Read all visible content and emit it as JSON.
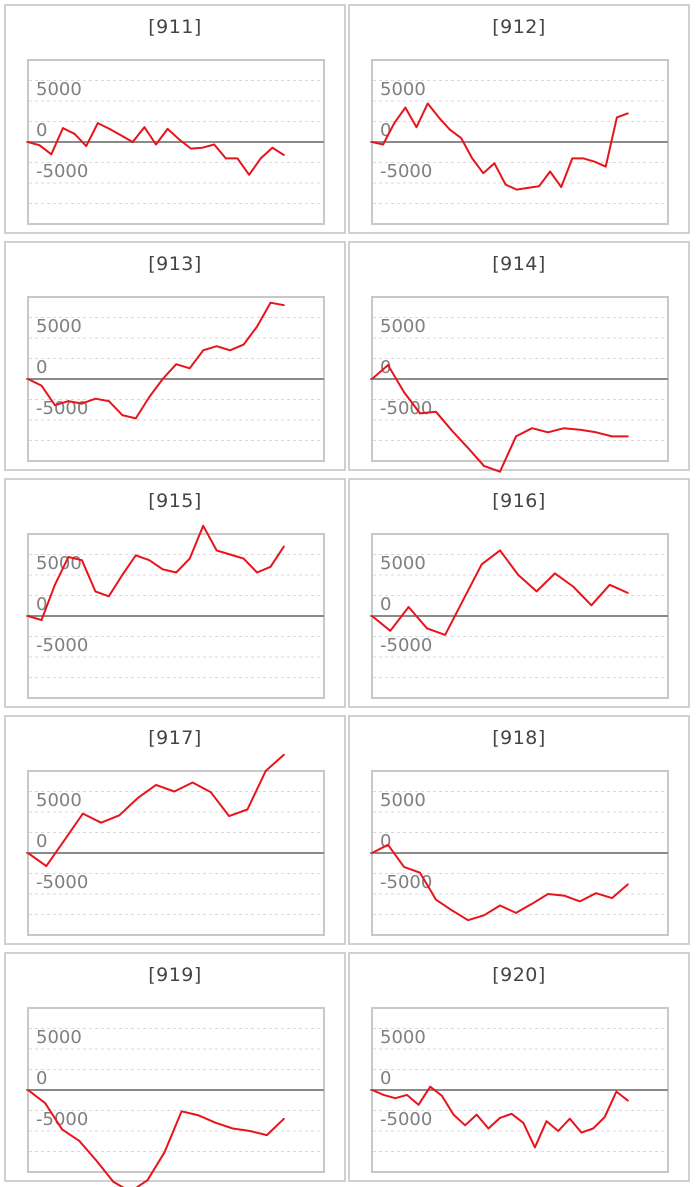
{
  "chart_data": [
    {
      "type": "line",
      "title": "[911]",
      "yticks": [
        5000,
        0,
        -5000
      ],
      "ylim": [
        -10000,
        10000
      ],
      "grid": "dashed",
      "values": [
        0,
        -400,
        -1500,
        1700,
        1000,
        -500,
        2300,
        1600,
        800,
        0,
        1800,
        -300,
        1600,
        300,
        -800,
        -700,
        -300,
        -2000,
        -2000,
        -4000,
        -2000,
        -700,
        -1600
      ]
    },
    {
      "type": "line",
      "title": "[912]",
      "yticks": [
        5000,
        0,
        -5000
      ],
      "ylim": [
        -10000,
        10000
      ],
      "grid": "dashed",
      "values": [
        0,
        -300,
        2300,
        4200,
        1800,
        4700,
        3000,
        1500,
        500,
        -2000,
        -3800,
        -2600,
        -5200,
        -5800,
        -5600,
        -5400,
        -3600,
        -5500,
        -2000,
        -2000,
        -2400,
        -3000,
        3000,
        3500
      ]
    },
    {
      "type": "line",
      "title": "[913]",
      "yticks": [
        5000,
        0,
        -5000
      ],
      "ylim": [
        -10000,
        10000
      ],
      "grid": "dashed",
      "values": [
        0,
        -800,
        -3200,
        -2700,
        -3000,
        -2400,
        -2700,
        -4400,
        -4800,
        -2200,
        0,
        1800,
        1300,
        3500,
        4000,
        3500,
        4200,
        6400,
        9300,
        9000
      ]
    },
    {
      "type": "line",
      "title": "[914]",
      "yticks": [
        5000,
        0,
        -5000
      ],
      "ylim": [
        -10000,
        10000
      ],
      "grid": "dashed",
      "values": [
        0,
        1700,
        -1600,
        -4200,
        -4000,
        -6300,
        -8400,
        -10600,
        -11300,
        -7000,
        -6000,
        -6500,
        -6000,
        -6200,
        -6500,
        -7000,
        -7000
      ]
    },
    {
      "type": "line",
      "title": "[915]",
      "yticks": [
        5000,
        0,
        -5000
      ],
      "ylim": [
        -10000,
        10000
      ],
      "grid": "dashed",
      "values": [
        0,
        -500,
        3800,
        7200,
        6800,
        3000,
        2400,
        5000,
        7400,
        6800,
        5700,
        5300,
        7000,
        11000,
        8000,
        7500,
        7000,
        5300,
        6000,
        8500
      ]
    },
    {
      "type": "line",
      "title": "[916]",
      "yticks": [
        5000,
        0,
        -5000
      ],
      "ylim": [
        -10000,
        10000
      ],
      "grid": "dashed",
      "values": [
        0,
        -1800,
        1100,
        -1500,
        -2300,
        2000,
        6300,
        8000,
        5000,
        3000,
        5200,
        3600,
        1300,
        3800,
        2800
      ]
    },
    {
      "type": "line",
      "title": "[917]",
      "yticks": [
        5000,
        0,
        -5000
      ],
      "ylim": [
        -10000,
        10000
      ],
      "grid": "dashed",
      "values": [
        0,
        -1600,
        1600,
        4800,
        3700,
        4600,
        6700,
        8300,
        7500,
        8600,
        7400,
        4500,
        5300,
        10000,
        12000
      ]
    },
    {
      "type": "line",
      "title": "[918]",
      "yticks": [
        5000,
        0,
        -5000
      ],
      "ylim": [
        -10000,
        10000
      ],
      "grid": "dashed",
      "values": [
        0,
        1000,
        -1700,
        -2400,
        -5700,
        -7000,
        -8200,
        -7600,
        -6400,
        -7300,
        -6200,
        -5000,
        -5200,
        -5900,
        -4900,
        -5500,
        -3800
      ]
    },
    {
      "type": "line",
      "title": "[919]",
      "yticks": [
        5000,
        0,
        -5000
      ],
      "ylim": [
        -10000,
        10000
      ],
      "grid": "dashed",
      "values": [
        0,
        -1600,
        -4800,
        -6200,
        -8600,
        -11200,
        -12400,
        -11000,
        -7600,
        -2600,
        -3100,
        -4000,
        -4700,
        -5000,
        -5500,
        -3500
      ]
    },
    {
      "type": "line",
      "title": "[920]",
      "yticks": [
        5000,
        0,
        -5000
      ],
      "ylim": [
        -10000,
        10000
      ],
      "grid": "dashed",
      "values": [
        0,
        -600,
        -1000,
        -600,
        -1800,
        400,
        -700,
        -3000,
        -4300,
        -3000,
        -4700,
        -3400,
        -2900,
        -4000,
        -7000,
        -3800,
        -5000,
        -3500,
        -5200,
        -4700,
        -3300,
        -200,
        -1300
      ]
    }
  ]
}
